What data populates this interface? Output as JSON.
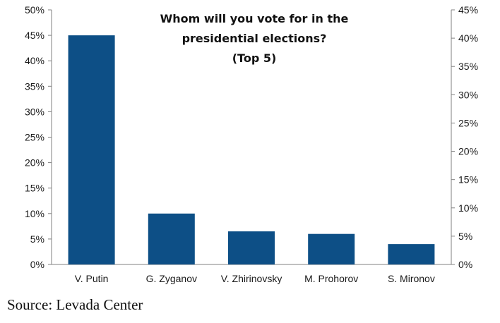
{
  "chart_data": {
    "type": "bar",
    "title_lines": [
      "Whom will you vote for in the",
      "presidential elections?",
      "(Top 5)"
    ],
    "categories": [
      "V. Putin",
      "G. Zyganov",
      "V. Zhirinovsky",
      "M. Prohorov",
      "S. Mironov"
    ],
    "values": [
      45,
      10,
      6.5,
      6,
      4
    ],
    "ylim_left": [
      0,
      50
    ],
    "yticks_left": [
      "0%",
      "5%",
      "10%",
      "15%",
      "20%",
      "25%",
      "30%",
      "35%",
      "40%",
      "45%",
      "50%"
    ],
    "ylim_right": [
      0,
      45
    ],
    "yticks_right": [
      "0%",
      "5%",
      "10%",
      "15%",
      "20%",
      "25%",
      "30%",
      "35%",
      "40%",
      "45%"
    ],
    "grid": false,
    "legend": "none",
    "bar_color": "#0d4f86"
  },
  "source": "Source: Levada Center"
}
